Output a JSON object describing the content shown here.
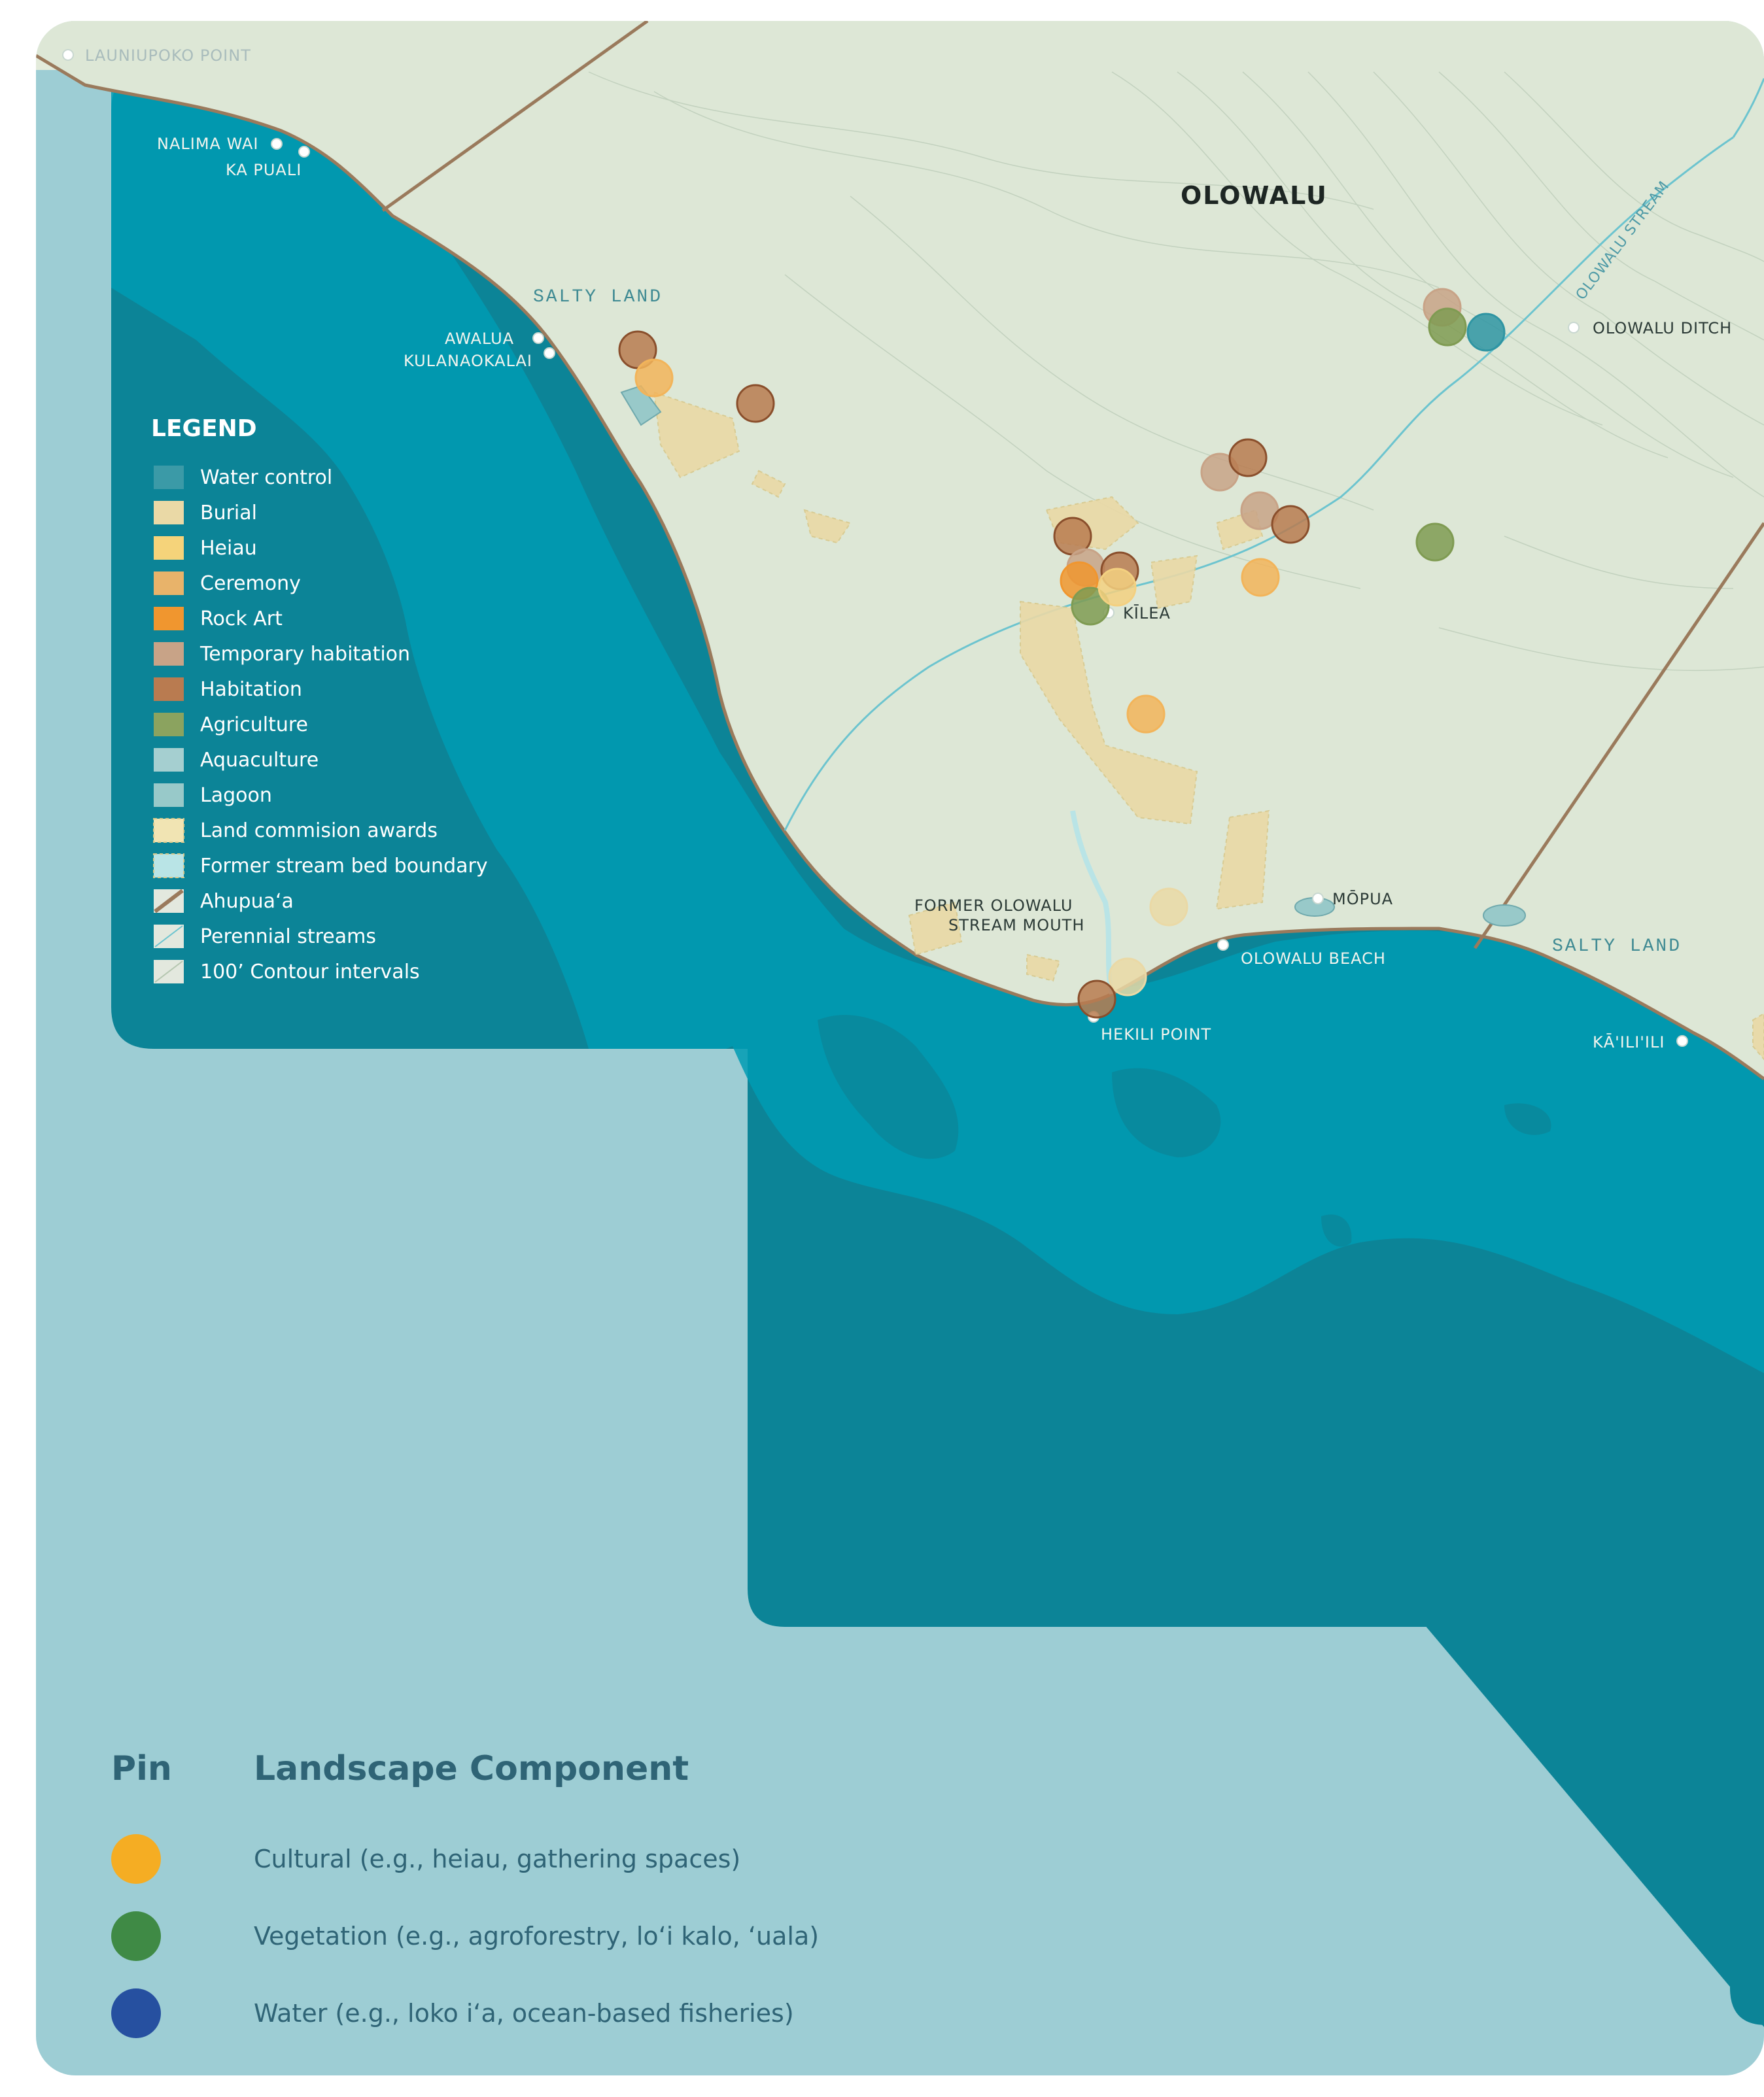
{
  "map_title": "OLOWALU",
  "zones": [
    "SALTY LAND",
    "SALTY LAND"
  ],
  "streams": [
    "OLOWALU STREAM"
  ],
  "places": {
    "launiupoko": "LAUNIUPOKO POINT",
    "nalima": "NALIMA WAI",
    "kapuali": "KA PUALI",
    "awalua": "AWALUA",
    "kulanaokalai": "KULANAOKALAI",
    "olowalu_ditch": "OLOWALU DITCH",
    "kilea": "KĪLEA",
    "former1": "FORMER OLOWALU",
    "former2": "STREAM MOUTH",
    "mopua": "MŌPUA",
    "olowalu_beach": "OLOWALU BEACH",
    "hekili": "HEKILI POINT",
    "kailili": "KĀ'ILI'ILI"
  },
  "legend": {
    "title": "LEGEND",
    "items": [
      {
        "label": "Water control",
        "color": "#3b9aa7",
        "kind": "fill"
      },
      {
        "label": "Burial",
        "color": "#ead9a6",
        "kind": "fill"
      },
      {
        "label": "Heiau",
        "color": "#f5d37a",
        "kind": "fill"
      },
      {
        "label": "Ceremony",
        "color": "#e8b36a",
        "kind": "fill"
      },
      {
        "label": "Rock Art",
        "color": "#f0962f",
        "kind": "fill"
      },
      {
        "label": "Temporary habitation",
        "color": "#c8a387",
        "kind": "fill"
      },
      {
        "label": "Habitation",
        "color": "#b97b50",
        "kind": "fill"
      },
      {
        "label": "Agriculture",
        "color": "#8ba35f",
        "kind": "fill"
      },
      {
        "label": "Aquaculture",
        "color": "#a5cfd0",
        "kind": "fill"
      },
      {
        "label": "Lagoon",
        "color": "#98c9c9",
        "kind": "fill"
      },
      {
        "label": "Land commision awards",
        "color": "#f1e4b3",
        "kind": "dashed"
      },
      {
        "label": "Former stream bed boundary",
        "color": "#b9e4e6",
        "kind": "dashed"
      },
      {
        "label": "Ahupuaʻa",
        "color": "#9a7a5c",
        "kind": "line"
      },
      {
        "label": "Perennial streams",
        "color": "#6cc4cf",
        "kind": "thin"
      },
      {
        "label": "100’ Contour intervals",
        "color": "#b5c6b0",
        "kind": "thin"
      }
    ]
  },
  "pins": [
    {
      "type": "Habitation",
      "color": "#b97b50"
    },
    {
      "type": "Ceremony",
      "color": "#f2b45a"
    },
    {
      "type": "Habitation",
      "color": "#b97b50"
    },
    {
      "type": "Temporary habitation",
      "color": "#c8a387"
    },
    {
      "type": "Habitation",
      "color": "#b97b50"
    },
    {
      "type": "Temporary habitation",
      "color": "#c8a387"
    },
    {
      "type": "Habitation",
      "color": "#b97b50"
    },
    {
      "type": "Habitation",
      "color": "#b97b50"
    },
    {
      "type": "Temporary habitation",
      "color": "#c8a387"
    },
    {
      "type": "Habitation",
      "color": "#b97b50"
    },
    {
      "type": "Rock Art",
      "color": "#f0962f"
    },
    {
      "type": "Agriculture",
      "color": "#7f9b52"
    },
    {
      "type": "Heiau",
      "color": "#f3d080"
    },
    {
      "type": "Ceremony",
      "color": "#f2b45a"
    },
    {
      "type": "Ceremony",
      "color": "#f2b45a"
    },
    {
      "type": "Agriculture",
      "color": "#7f9b52"
    },
    {
      "type": "Temporary habitation",
      "color": "#c8a387"
    },
    {
      "type": "Agriculture",
      "color": "#7f9b52"
    },
    {
      "type": "Water control",
      "color": "#2f95a3"
    },
    {
      "type": "Burial",
      "color": "#ead9a6"
    },
    {
      "type": "Burial",
      "color": "#ead9a6"
    },
    {
      "type": "Habitation",
      "color": "#b97b50"
    }
  ],
  "pin_legend": {
    "col1": "Pin",
    "col2": "Landscape Component",
    "items": [
      {
        "label": "Cultural (e.g., heiau, gathering spaces)",
        "color": "#f5ad23"
      },
      {
        "label": "Vegetation (e.g., agroforestry, loʻi kalo, ʻuala)",
        "color": "#3f8a45"
      },
      {
        "label": "Water (e.g., loko iʻa, ocean-based fisheries)",
        "color": "#2650a0"
      }
    ]
  }
}
